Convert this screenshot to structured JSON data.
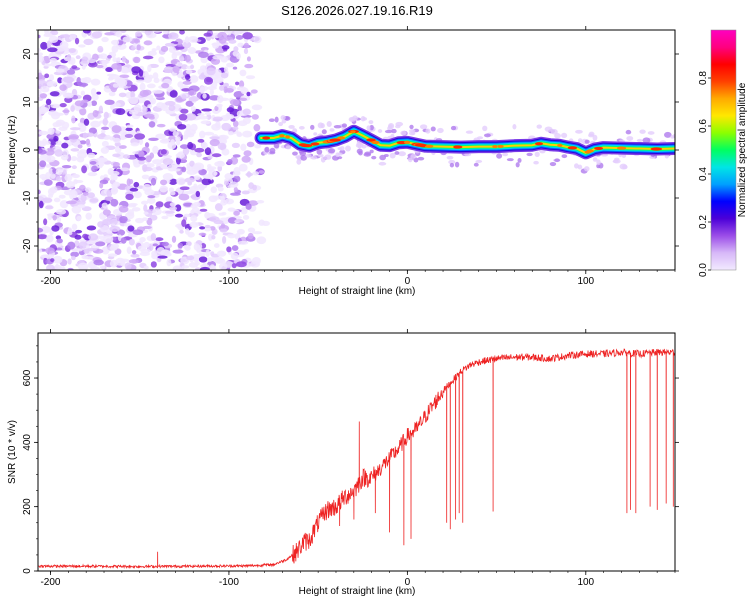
{
  "title": "S126.2026.027.19.16.R19",
  "chart_data": [
    {
      "type": "heatmap",
      "title": "S126.2026.027.19.16.R19",
      "xlabel": "Height of straight line (km)",
      "ylabel": "Frequency (Hz)",
      "xlim": [
        -207,
        150
      ],
      "ylim": [
        -25,
        25
      ],
      "xticks": [
        -200,
        -100,
        0,
        100
      ],
      "yticks": [
        -20,
        -10,
        0,
        10,
        20
      ],
      "noise_region_x": [
        -207,
        -78
      ],
      "signal_onset_x": -82,
      "ridge": {
        "name": "signal ridge",
        "x": [
          -82,
          -75,
          -70,
          -65,
          -60,
          -55,
          -50,
          -45,
          -40,
          -35,
          -30,
          -25,
          -20,
          -15,
          -10,
          -5,
          0,
          5,
          10,
          20,
          30,
          40,
          50,
          60,
          70,
          75,
          80,
          85,
          90,
          95,
          100,
          105,
          110,
          120,
          130,
          140,
          150
        ],
        "freq_hz": [
          2.5,
          2.5,
          3,
          2.5,
          1.2,
          0.8,
          1.5,
          1.7,
          2.1,
          2.8,
          3.9,
          3.0,
          2.0,
          1.0,
          0.9,
          1.5,
          1.6,
          1.2,
          0.8,
          0.7,
          0.6,
          0.7,
          0.7,
          0.9,
          1.0,
          1.4,
          1.1,
          1.0,
          0.6,
          0.3,
          -0.6,
          0.2,
          0.5,
          0.4,
          0.3,
          0.2,
          0.3
        ]
      },
      "colorbar": {
        "label": "Normalized spectral amplitude",
        "ticks": [
          0.0,
          0.2,
          0.4,
          0.6,
          0.8
        ],
        "range": [
          0,
          1
        ],
        "colors": [
          "#f2eaff",
          "#d7b8f8",
          "#9b4de8",
          "#4b00d8",
          "#0000ff",
          "#00a0ff",
          "#00e5e5",
          "#00ff60",
          "#8cff00",
          "#ffe800",
          "#ffaa00",
          "#ff4000",
          "#ff0000",
          "#ff0080",
          "#ff00c0"
        ]
      }
    },
    {
      "type": "line",
      "xlabel": "Height of straight line (km)",
      "ylabel": "SNR (10 * v/v)",
      "xlim": [
        -207,
        150
      ],
      "ylim": [
        0,
        740
      ],
      "xticks": [
        -200,
        -100,
        0,
        100
      ],
      "yticks": [
        0,
        200,
        400,
        600
      ],
      "series": [
        {
          "name": "SNR",
          "color": "#ee2222",
          "x": [
            -207,
            -180,
            -150,
            -120,
            -90,
            -75,
            -68,
            -62,
            -58,
            -55,
            -50,
            -45,
            -40,
            -35,
            -30,
            -25,
            -20,
            -15,
            -10,
            -5,
            0,
            5,
            10,
            15,
            20,
            25,
            30,
            35,
            40,
            50,
            60,
            70,
            80,
            90,
            100,
            110,
            120,
            130,
            140,
            150
          ],
          "y": [
            15,
            15,
            14,
            15,
            16,
            20,
            35,
            60,
            90,
            95,
            150,
            190,
            200,
            230,
            250,
            290,
            290,
            320,
            350,
            380,
            420,
            440,
            480,
            520,
            560,
            590,
            620,
            640,
            650,
            660,
            665,
            665,
            660,
            670,
            675,
            675,
            680,
            675,
            680,
            680
          ],
          "dropouts": [
            {
              "x": -38,
              "min": 140
            },
            {
              "x": -30,
              "min": 160
            },
            {
              "x": -18,
              "min": 180
            },
            {
              "x": -10,
              "min": 120
            },
            {
              "x": -2,
              "min": 80
            },
            {
              "x": 2,
              "min": 100
            },
            {
              "x": 22,
              "min": 150
            },
            {
              "x": 24,
              "min": 130
            },
            {
              "x": 27,
              "min": 160
            },
            {
              "x": 29,
              "min": 180
            },
            {
              "x": 31,
              "min": 150
            },
            {
              "x": 48,
              "min": 185
            },
            {
              "x": 123,
              "min": 180
            },
            {
              "x": 125,
              "min": 190
            },
            {
              "x": 128,
              "min": 180
            },
            {
              "x": 136,
              "min": 200
            },
            {
              "x": 140,
              "min": 190
            },
            {
              "x": 145,
              "min": 210
            },
            {
              "x": 149,
              "min": 200
            }
          ],
          "spikes": [
            {
              "x": -140,
              "max": 60
            },
            {
              "x": -27,
              "max": 465
            },
            {
              "x": 49,
              "max": 670
            }
          ]
        }
      ]
    }
  ]
}
